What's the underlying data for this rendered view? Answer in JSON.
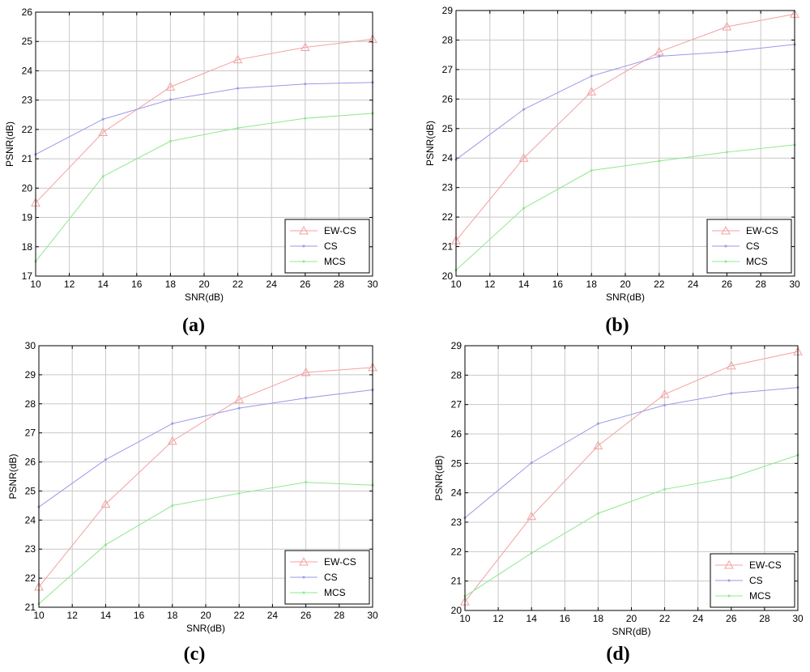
{
  "series_colors": {
    "EW-CS": "#f4a0a0",
    "CS": "#9a9ae8",
    "MCS": "#8ee88e"
  },
  "chart_data": [
    {
      "type": "line",
      "panel": "(a)",
      "caption_letter": "a",
      "xlabel": "SNR(dB)",
      "ylabel": "PSNR(dB)",
      "xlim": [
        10,
        30
      ],
      "ylim": [
        17,
        26
      ],
      "xticks": [
        10,
        12,
        14,
        16,
        18,
        20,
        22,
        24,
        26,
        28,
        30
      ],
      "yticks": [
        17,
        18,
        19,
        20,
        21,
        22,
        23,
        24,
        25,
        26
      ],
      "grid": true,
      "legend_position": "bottom-right",
      "x": [
        10,
        14,
        18,
        22,
        26,
        30
      ],
      "series": [
        {
          "name": "EW-CS",
          "marker": "triangle",
          "values": [
            19.5,
            21.9,
            23.45,
            24.38,
            24.8,
            25.08
          ]
        },
        {
          "name": "CS",
          "marker": "dot",
          "values": [
            21.15,
            22.35,
            23.02,
            23.4,
            23.55,
            23.6
          ]
        },
        {
          "name": "MCS",
          "marker": "dot",
          "values": [
            17.5,
            20.4,
            21.6,
            22.05,
            22.38,
            22.55
          ]
        }
      ]
    },
    {
      "type": "line",
      "panel": "(b)",
      "caption_letter": "b",
      "xlabel": "SNR(dB)",
      "ylabel": "PSNR(dB)",
      "xlim": [
        10,
        30
      ],
      "ylim": [
        20,
        29
      ],
      "xticks": [
        10,
        12,
        14,
        16,
        18,
        20,
        22,
        24,
        26,
        28,
        30
      ],
      "yticks": [
        20,
        21,
        22,
        23,
        24,
        25,
        26,
        27,
        28,
        29
      ],
      "grid": true,
      "legend_position": "bottom-right",
      "x": [
        10,
        14,
        18,
        22,
        26,
        30
      ],
      "series": [
        {
          "name": "EW-CS",
          "marker": "triangle",
          "values": [
            21.2,
            24.0,
            26.25,
            27.6,
            28.45,
            28.88
          ]
        },
        {
          "name": "CS",
          "marker": "dot",
          "values": [
            23.95,
            25.65,
            26.78,
            27.45,
            27.6,
            27.85
          ]
        },
        {
          "name": "MCS",
          "marker": "dot",
          "values": [
            20.2,
            22.3,
            23.58,
            23.9,
            24.2,
            24.45
          ]
        }
      ]
    },
    {
      "type": "line",
      "panel": "(c)",
      "caption_letter": "c",
      "xlabel": "SNR(dB)",
      "ylabel": "PSNR(dB)",
      "xlim": [
        10,
        30
      ],
      "ylim": [
        21,
        30
      ],
      "xticks": [
        10,
        12,
        14,
        16,
        18,
        20,
        22,
        24,
        26,
        28,
        30
      ],
      "yticks": [
        21,
        22,
        23,
        24,
        25,
        26,
        27,
        28,
        29,
        30
      ],
      "grid": true,
      "legend_position": "bottom-right",
      "x": [
        10,
        14,
        18,
        22,
        26,
        30
      ],
      "series": [
        {
          "name": "EW-CS",
          "marker": "triangle",
          "values": [
            21.7,
            24.55,
            26.72,
            28.15,
            29.08,
            29.25
          ]
        },
        {
          "name": "CS",
          "marker": "dot",
          "values": [
            24.45,
            26.08,
            27.32,
            27.85,
            28.2,
            28.48
          ]
        },
        {
          "name": "MCS",
          "marker": "dot",
          "values": [
            21.12,
            23.15,
            24.5,
            24.92,
            25.3,
            25.2
          ]
        }
      ]
    },
    {
      "type": "line",
      "panel": "(d)",
      "caption_letter": "d",
      "xlabel": "SNR(dB)",
      "ylabel": "PSNR(dB)",
      "xlim": [
        10,
        30
      ],
      "ylim": [
        20,
        29
      ],
      "xticks": [
        10,
        12,
        14,
        16,
        18,
        20,
        22,
        24,
        26,
        28,
        30
      ],
      "yticks": [
        20,
        21,
        22,
        23,
        24,
        25,
        26,
        27,
        28,
        29
      ],
      "grid": true,
      "legend_position": "bottom-right",
      "x": [
        10,
        14,
        18,
        22,
        26,
        30
      ],
      "series": [
        {
          "name": "EW-CS",
          "marker": "triangle",
          "values": [
            20.3,
            23.2,
            25.6,
            27.35,
            28.32,
            28.8
          ]
        },
        {
          "name": "CS",
          "marker": "dot",
          "values": [
            23.15,
            25.02,
            26.35,
            26.98,
            27.38,
            27.58
          ]
        },
        {
          "name": "MCS",
          "marker": "dot",
          "values": [
            20.48,
            21.95,
            23.3,
            24.12,
            24.52,
            25.28
          ]
        }
      ]
    }
  ]
}
